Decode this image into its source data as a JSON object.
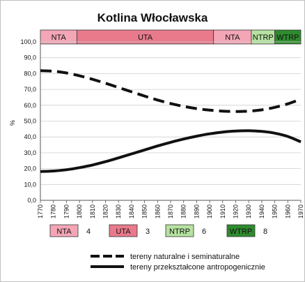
{
  "chart_data": {
    "type": "line",
    "title": "Kotlina  Włocławska",
    "xlabel": "",
    "ylabel": "%",
    "xlim": [
      1770,
      1970
    ],
    "ylim": [
      0,
      100
    ],
    "x_ticks": [
      "1770",
      "1780",
      "1790",
      "1800",
      "1810",
      "1820",
      "1830",
      "1840",
      "1850",
      "1860",
      "1870",
      "1880",
      "1890",
      "1900",
      "1910",
      "1920",
      "1930",
      "1940",
      "1950",
      "1960",
      "1970"
    ],
    "y_ticks": [
      "0,0",
      "10,0",
      "20,0",
      "30,0",
      "40,0",
      "50,0",
      "60,0",
      "70,0",
      "80,0",
      "90,0",
      "100,0"
    ],
    "grid": true,
    "periods": [
      {
        "label": "NTA",
        "start": 1770,
        "end": 1798,
        "color": "#f4a6b6"
      },
      {
        "label": "UTA",
        "start": 1798,
        "end": 1903,
        "color": "#e87a8c"
      },
      {
        "label": "NTA",
        "start": 1903,
        "end": 1932,
        "color": "#f4a6b6"
      },
      {
        "label": "NTRP",
        "start": 1932,
        "end": 1950,
        "color": "#b6e2a1"
      },
      {
        "label": "WTRP",
        "start": 1950,
        "end": 1970,
        "color": "#2e8b2e"
      }
    ],
    "series": [
      {
        "name": "tereny naturalne i seminaturalne",
        "style": "dashed",
        "x": [
          1770,
          1780,
          1790,
          1800,
          1810,
          1820,
          1830,
          1840,
          1850,
          1860,
          1870,
          1880,
          1890,
          1900,
          1910,
          1920,
          1930,
          1940,
          1950,
          1960,
          1970
        ],
        "values": [
          81.8,
          81.5,
          80.4,
          78.6,
          76.4,
          73.9,
          71.2,
          68.5,
          65.8,
          63.3,
          61.1,
          59.3,
          57.9,
          56.9,
          56.3,
          56.1,
          56.3,
          57.1,
          58.7,
          60.9,
          63.8
        ]
      },
      {
        "name": "tereny przekształcone antropogenicznie",
        "style": "solid",
        "x": [
          1770,
          1780,
          1790,
          1800,
          1810,
          1820,
          1830,
          1840,
          1850,
          1860,
          1870,
          1880,
          1890,
          1900,
          1910,
          1920,
          1930,
          1940,
          1950,
          1960,
          1970
        ],
        "values": [
          18.2,
          18.5,
          19.3,
          20.6,
          22.3,
          24.4,
          26.8,
          29.3,
          31.8,
          34.3,
          36.6,
          38.7,
          40.5,
          42.0,
          43.1,
          43.7,
          43.9,
          43.5,
          42.4,
          40.3,
          36.9
        ]
      }
    ],
    "legend_codes": [
      {
        "label": "NTA",
        "number": "4",
        "color": "#f4a6b6"
      },
      {
        "label": "UTA",
        "number": "3",
        "color": "#e87a8c"
      },
      {
        "label": "NTRP",
        "number": "6",
        "color": "#b6e2a1"
      },
      {
        "label": "WTRP",
        "number": "8",
        "color": "#2e8b2e"
      }
    ],
    "legend_lines": [
      {
        "label": "tereny naturalne i seminaturalne",
        "style": "dashed"
      },
      {
        "label": "tereny przekształcone antropogenicznie",
        "style": "solid"
      }
    ]
  }
}
